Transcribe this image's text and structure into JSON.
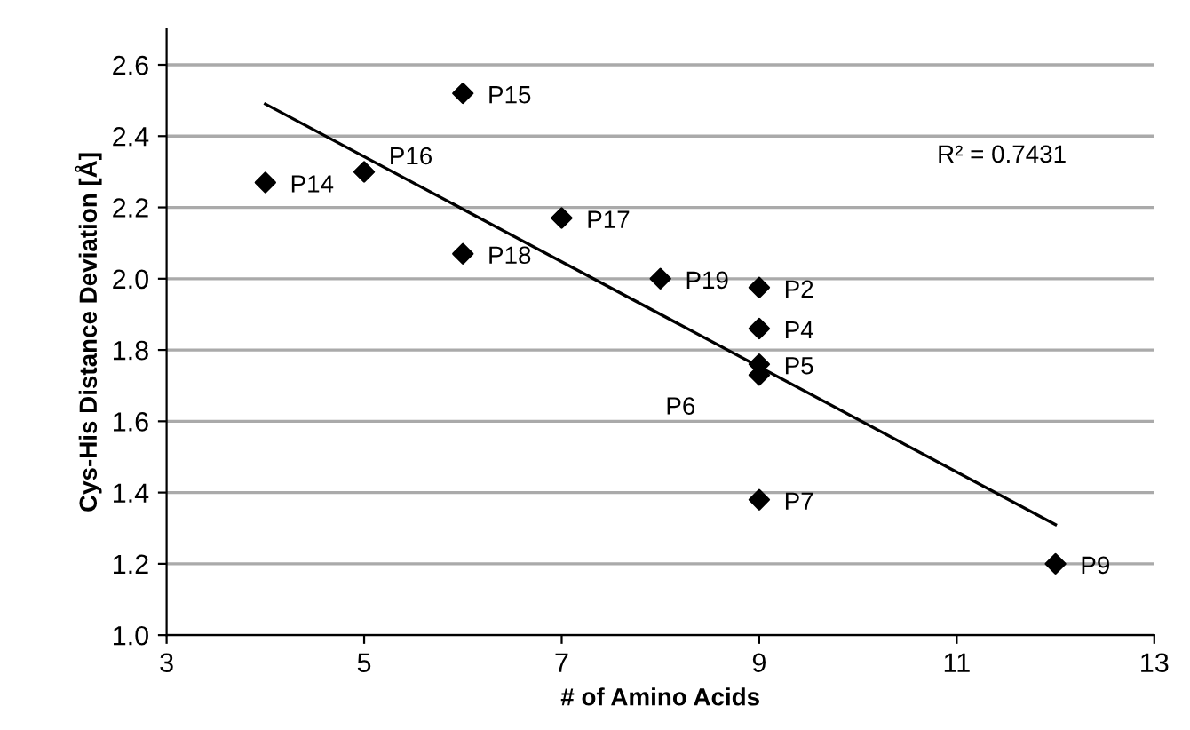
{
  "chart_data": {
    "type": "scatter",
    "xlabel": "# of Amino Acids",
    "ylabel": "Cys-His Distance Deviation [Å]",
    "xlim": [
      3,
      13
    ],
    "xticks": [
      3,
      5,
      7,
      9,
      11,
      13
    ],
    "ylim": [
      1.0,
      2.7
    ],
    "yticks": [
      {
        "value": 1.0,
        "label": "1.0"
      },
      1.2,
      1.4,
      1.6,
      1.8,
      {
        "value": 2.0,
        "label": "2.0"
      },
      2.2,
      2.4,
      2.6
    ],
    "grid": "y",
    "legend": false,
    "series": [
      {
        "color": "#000000",
        "marker": "diamond",
        "x": [
          4,
          5,
          6,
          6,
          7,
          8,
          9,
          9,
          9,
          9,
          9,
          12
        ],
        "values": [
          2.27,
          2.3,
          2.52,
          2.07,
          2.17,
          2.0,
          1.975,
          1.86,
          1.76,
          1.73,
          1.38,
          1.2
        ]
      },
      {
        "type": "line",
        "color": "#000000",
        "marker": "none",
        "line_style": "solid",
        "x": [
          4,
          12
        ],
        "values": [
          2.49,
          1.31
        ]
      }
    ],
    "annotations": [
      {
        "text": "P14",
        "x": 4,
        "y": 2.27
      },
      {
        "text": "P16",
        "x": 5,
        "y": 2.3
      },
      {
        "text": "P15",
        "x": 6,
        "y": 2.52
      },
      {
        "text": "P18",
        "x": 6,
        "y": 2.07
      },
      {
        "text": "P17",
        "x": 7,
        "y": 2.17
      },
      {
        "text": "P19",
        "x": 8,
        "y": 2.0
      },
      {
        "text": "P2",
        "x": 9,
        "y": 1.975
      },
      {
        "text": "P4",
        "x": 9,
        "y": 1.86
      },
      {
        "text": "P5",
        "x": 9,
        "y": 1.76
      },
      {
        "text": "P6",
        "x": 9,
        "y": 1.73
      },
      {
        "text": "P7",
        "x": 9,
        "y": 1.38
      },
      {
        "text": "P9",
        "x": 12,
        "y": 1.2
      },
      "R² = 0.7431"
    ]
  }
}
